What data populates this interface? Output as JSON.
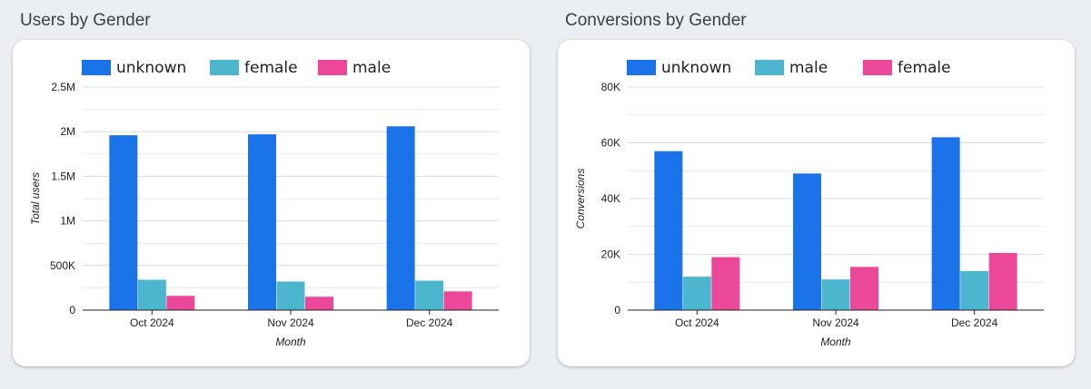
{
  "charts": [
    {
      "title": "Users by Gender",
      "chart_data": {
        "type": "bar",
        "categories": [
          "Oct 2024",
          "Nov 2024",
          "Dec 2024"
        ],
        "series": [
          {
            "name": "unknown",
            "color": "#1a73e8",
            "values": [
              1960000,
              1970000,
              2060000
            ]
          },
          {
            "name": "female",
            "color": "#4db6cf",
            "values": [
              340000,
              320000,
              330000
            ]
          },
          {
            "name": "male",
            "color": "#ec4899",
            "values": [
              160000,
              150000,
              210000
            ]
          }
        ],
        "xlabel": "Month",
        "ylabel": "Total users",
        "ylim": [
          0,
          2500000
        ],
        "yticks": [
          0,
          500000,
          1000000,
          1500000,
          2000000,
          2500000
        ],
        "ytick_labels": [
          "0",
          "500K",
          "1M",
          "1.5M",
          "2M",
          "2.5M"
        ],
        "legend": "top-left",
        "grid": true
      }
    },
    {
      "title": "Conversions by Gender",
      "chart_data": {
        "type": "bar",
        "categories": [
          "Oct 2024",
          "Nov 2024",
          "Dec 2024"
        ],
        "series": [
          {
            "name": "unknown",
            "color": "#1a73e8",
            "values": [
              57000,
              49000,
              62000
            ]
          },
          {
            "name": "male",
            "color": "#4db6cf",
            "values": [
              12000,
              11000,
              14000
            ]
          },
          {
            "name": "female",
            "color": "#ec4899",
            "values": [
              19000,
              15500,
              20500
            ]
          }
        ],
        "xlabel": "Month",
        "ylabel": "Conversions",
        "ylim": [
          0,
          80000
        ],
        "yticks": [
          0,
          20000,
          40000,
          60000,
          80000
        ],
        "ytick_labels": [
          "0",
          "20K",
          "40K",
          "60K",
          "80K"
        ],
        "legend": "top-left",
        "grid": true
      }
    }
  ]
}
